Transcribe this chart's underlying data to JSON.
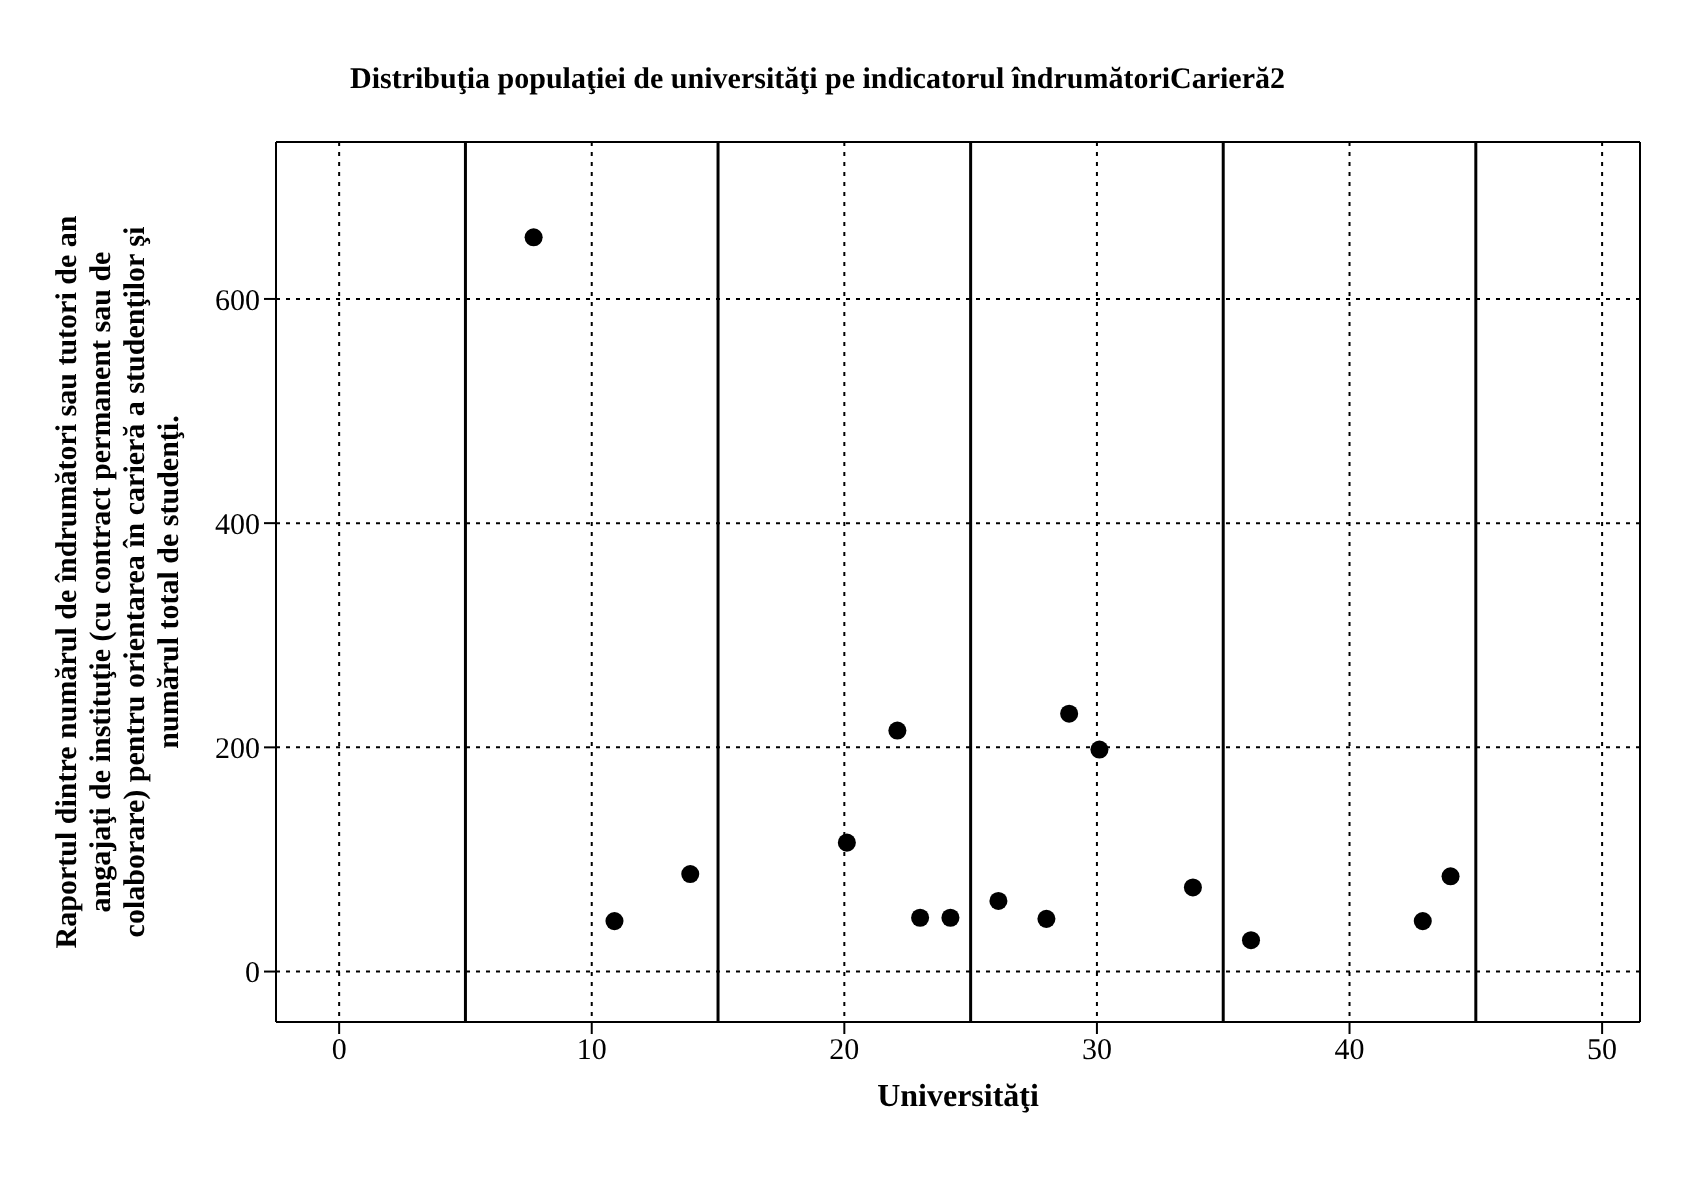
{
  "chart_data": {
    "type": "scatter",
    "title": "Distribuţia populaţiei de universităţi pe indicatorul îndrumătoriCarieră2",
    "xlabel": "Universităţi",
    "ylabel": "Raportul dintre numărul de îndrumători sau tutori de an angajaţi de instituţie (cu contract permanent sau de colaborare) pentru orientarea în carieră a studenţilor şi numărul total de studenţi.",
    "x": [
      7.7,
      10.9,
      13.9,
      20.1,
      22.1,
      23.0,
      24.2,
      26.1,
      28.0,
      28.9,
      30.1,
      33.8,
      36.1,
      42.9,
      44.0
    ],
    "values": [
      655,
      45,
      87,
      115,
      215,
      48,
      48,
      63,
      47,
      230,
      198,
      75,
      28,
      45,
      85
    ],
    "color": "#000000",
    "marker": "circle",
    "grid": true,
    "xlim": [
      -2.5,
      51.5
    ],
    "xticks": [
      0,
      10,
      20,
      30,
      40,
      50
    ],
    "ylim": [
      -45,
      740
    ],
    "yticks": [
      0,
      200,
      400,
      600
    ],
    "ref_lines": [
      {
        "axis": "x",
        "value": 5,
        "color": "#000000"
      },
      {
        "axis": "x",
        "value": 15,
        "color": "#000000"
      },
      {
        "axis": "x",
        "value": 25,
        "color": "#000000"
      },
      {
        "axis": "x",
        "value": 35,
        "color": "#000000"
      },
      {
        "axis": "x",
        "value": 45,
        "color": "#000000"
      }
    ]
  }
}
